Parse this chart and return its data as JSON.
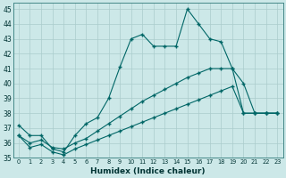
{
  "xlabel": "Humidex (Indice chaleur)",
  "ylabel": "",
  "bg_color": "#cce8e8",
  "grid_color": "#aacccc",
  "line_color": "#006666",
  "xlim": [
    -0.5,
    23.5
  ],
  "ylim": [
    35,
    45.4
  ],
  "yticks": [
    35,
    36,
    37,
    38,
    39,
    40,
    41,
    42,
    43,
    44,
    45
  ],
  "xticks": [
    0,
    1,
    2,
    3,
    4,
    5,
    6,
    7,
    8,
    9,
    10,
    11,
    12,
    13,
    14,
    15,
    16,
    17,
    18,
    19,
    20,
    21,
    22,
    23
  ],
  "series1_x": [
    0,
    1,
    2,
    3,
    4,
    5,
    6,
    7,
    8,
    9,
    10,
    11,
    12,
    13,
    14,
    15,
    16,
    17,
    18,
    19,
    20,
    21,
    22,
    23
  ],
  "series1_y": [
    37.2,
    36.5,
    36.5,
    35.6,
    35.4,
    36.5,
    37.3,
    37.7,
    39.0,
    41.1,
    43.0,
    43.3,
    42.5,
    42.5,
    42.5,
    45.0,
    44.0,
    43.0,
    42.8,
    41.0,
    40.0,
    38.0,
    38.0,
    38.0
  ],
  "series2_x": [
    0,
    1,
    2,
    3,
    4,
    5,
    6,
    7,
    8,
    9,
    10,
    11,
    12,
    13,
    14,
    15,
    16,
    17,
    18,
    19,
    20,
    21,
    22,
    23
  ],
  "series2_y": [
    36.5,
    36.0,
    36.2,
    35.7,
    35.6,
    36.0,
    36.3,
    36.8,
    37.3,
    37.8,
    38.3,
    38.8,
    39.2,
    39.6,
    40.0,
    40.4,
    40.7,
    41.0,
    41.0,
    41.0,
    38.0,
    38.0,
    38.0,
    38.0
  ],
  "series3_x": [
    0,
    1,
    2,
    3,
    4,
    5,
    6,
    7,
    8,
    9,
    10,
    11,
    12,
    13,
    14,
    15,
    16,
    17,
    18,
    19,
    20,
    21,
    22,
    23
  ],
  "series3_y": [
    36.5,
    35.7,
    35.9,
    35.4,
    35.2,
    35.6,
    35.9,
    36.2,
    36.5,
    36.8,
    37.1,
    37.4,
    37.7,
    38.0,
    38.3,
    38.6,
    38.9,
    39.2,
    39.5,
    39.8,
    38.0,
    38.0,
    38.0,
    38.0
  ]
}
